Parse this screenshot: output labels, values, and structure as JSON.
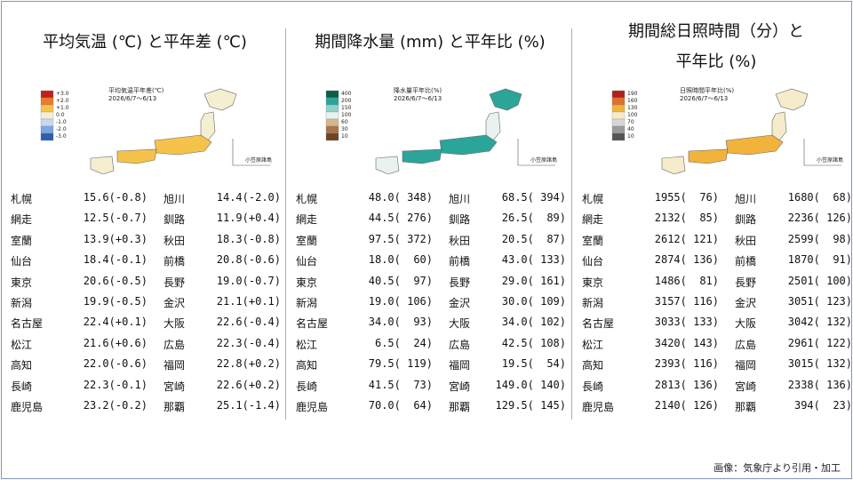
{
  "panels": [
    {
      "title": "平均気温 (℃) と平年差 (℃)",
      "map": {
        "caption": "平均気温平年差(℃)",
        "period": "2026/6/7～6/13",
        "legend": [
          "+3.0",
          "+2.0",
          "+1.0",
          "0.0",
          "-1.0",
          "-2.0",
          "-3.0"
        ],
        "colors": [
          "#c0201e",
          "#ee7a2a",
          "#f5c34c",
          "#f4efd0",
          "#c4d9f2",
          "#7aa6de",
          "#2d5fb1"
        ]
      },
      "rows": [
        [
          "札幌",
          "15.6(-0.8)",
          "旭川",
          "14.4(-2.0)"
        ],
        [
          "網走",
          "12.5(-0.7)",
          "釧路",
          "11.9(+0.4)"
        ],
        [
          "室蘭",
          "13.9(+0.3)",
          "秋田",
          "18.3(-0.8)"
        ],
        [
          "仙台",
          "18.4(-0.1)",
          "前橋",
          "20.8(-0.6)"
        ],
        [
          "東京",
          "20.6(-0.5)",
          "長野",
          "19.0(-0.7)"
        ],
        [
          "新潟",
          "19.9(-0.5)",
          "金沢",
          "21.1(+0.1)"
        ],
        [
          "名古屋",
          "22.4(+0.1)",
          "大阪",
          "22.6(-0.4)"
        ],
        [
          "松江",
          "21.6(+0.6)",
          "広島",
          "22.3(-0.4)"
        ],
        [
          "高知",
          "22.0(-0.6)",
          "福岡",
          "22.8(+0.2)"
        ],
        [
          "長崎",
          "22.3(-0.1)",
          "宮崎",
          "22.6(+0.2)"
        ],
        [
          "鹿児島",
          "23.2(-0.2)",
          "那覇",
          "25.1(-1.4)"
        ]
      ]
    },
    {
      "title": "期間降水量 (mm) と平年比 (%)",
      "map": {
        "caption": "降水量平年比(%)",
        "period": "2026/6/7～6/13",
        "legend": [
          "400",
          "200",
          "150",
          "100",
          "60",
          "30",
          "10"
        ],
        "colors": [
          "#0b5d4a",
          "#2ba59a",
          "#8fd3c8",
          "#e8f2ee",
          "#d7b58d",
          "#a6754a",
          "#6d4424"
        ]
      },
      "rows": [
        [
          "札幌",
          "48.0( 348)",
          "旭川",
          "68.5( 394)"
        ],
        [
          "網走",
          "44.5( 276)",
          "釧路",
          "26.5(  89)"
        ],
        [
          "室蘭",
          "97.5( 372)",
          "秋田",
          "20.5(  87)"
        ],
        [
          "仙台",
          "18.0(  60)",
          "前橋",
          "43.0( 133)"
        ],
        [
          "東京",
          "40.5(  97)",
          "長野",
          "29.0( 161)"
        ],
        [
          "新潟",
          "19.0( 106)",
          "金沢",
          "30.0( 109)"
        ],
        [
          "名古屋",
          "34.0(  93)",
          "大阪",
          "34.0( 102)"
        ],
        [
          "松江",
          "6.5(  24)",
          "広島",
          "42.5( 108)"
        ],
        [
          "高知",
          "79.5( 119)",
          "福岡",
          "19.5(  54)"
        ],
        [
          "長崎",
          "41.5(  73)",
          "宮崎",
          "149.0( 140)"
        ],
        [
          "鹿児島",
          "70.0(  64)",
          "那覇",
          "129.5( 145)"
        ]
      ]
    },
    {
      "title": "期間総日照時間（分）と",
      "title2": "平年比 (%)",
      "map": {
        "caption": "日照時間平年比(%)",
        "period": "2026/6/7～6/13",
        "legend": [
          "190",
          "160",
          "130",
          "100",
          "70",
          "40",
          "10"
        ],
        "colors": [
          "#b3201d",
          "#e2702a",
          "#f2b33d",
          "#f6eccb",
          "#d6d6d6",
          "#9a9a9a",
          "#555555"
        ]
      },
      "rows": [
        [
          "札幌",
          "1955(  76)",
          "旭川",
          "1680(  68)"
        ],
        [
          "網走",
          "2132(  85)",
          "釧路",
          "2236( 126)"
        ],
        [
          "室蘭",
          "2612( 121)",
          "秋田",
          "2599(  98)"
        ],
        [
          "仙台",
          "2874( 136)",
          "前橋",
          "1870(  91)"
        ],
        [
          "東京",
          "1486(  81)",
          "長野",
          "2501( 100)"
        ],
        [
          "新潟",
          "3157( 116)",
          "金沢",
          "3051( 123)"
        ],
        [
          "名古屋",
          "3033( 133)",
          "大阪",
          "3042( 132)"
        ],
        [
          "松江",
          "3420( 143)",
          "広島",
          "2961( 122)"
        ],
        [
          "高知",
          "2393( 116)",
          "福岡",
          "3015( 132)"
        ],
        [
          "長崎",
          "2813( 136)",
          "宮崎",
          "2338( 136)"
        ],
        [
          "鹿児島",
          "2140( 126)",
          "那覇",
          "394(  23)"
        ]
      ]
    }
  ],
  "credit": "画像：気象庁より引用・加工",
  "map_extras": {
    "ogasawara": "小笠原諸島"
  }
}
